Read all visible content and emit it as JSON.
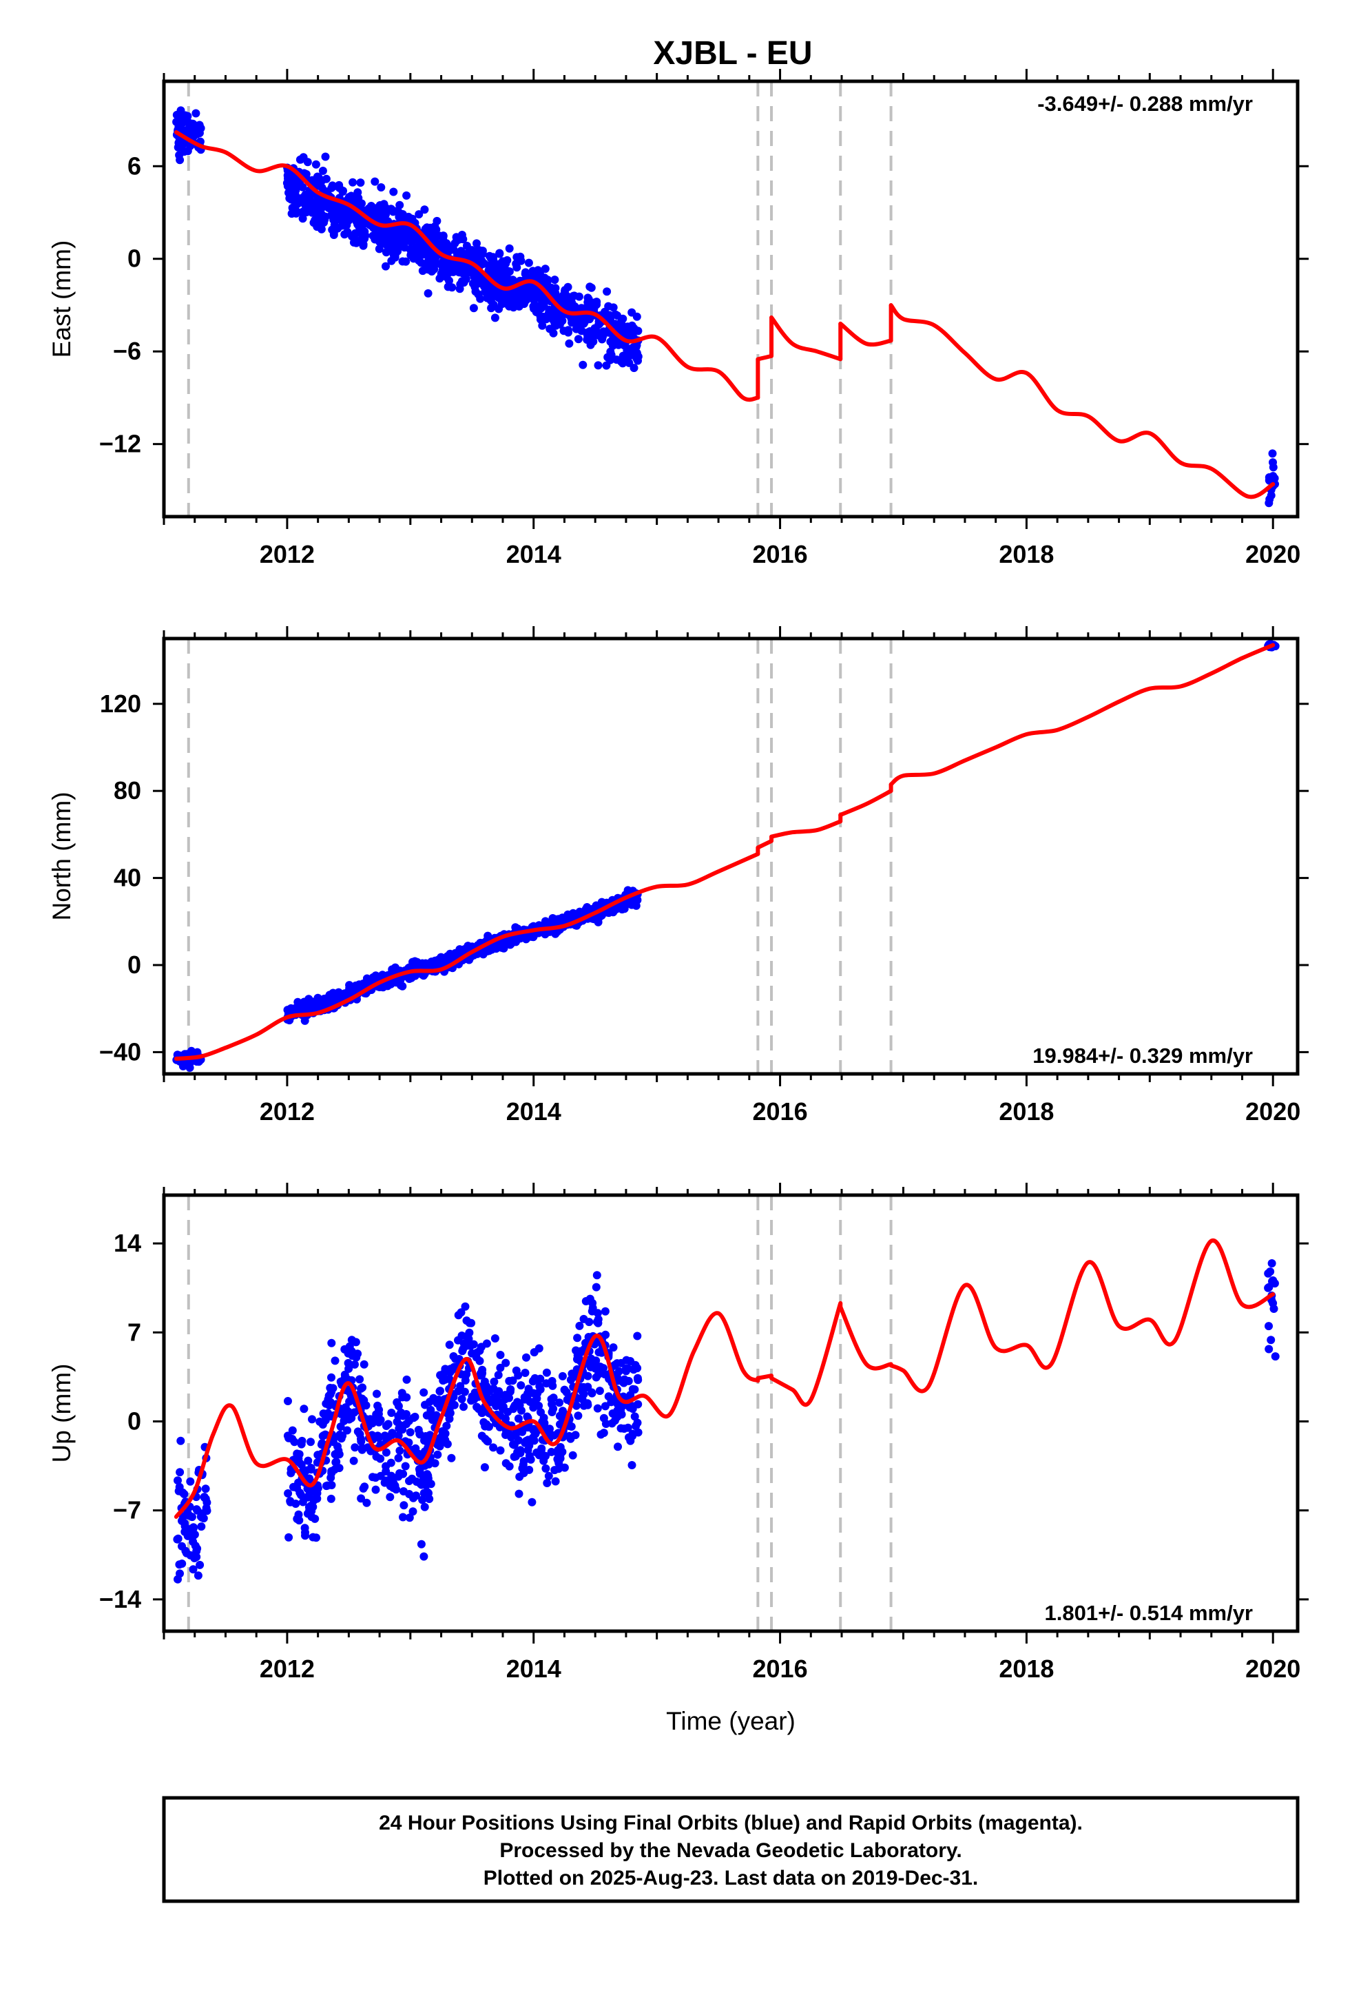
{
  "title": "XJBL - EU",
  "footer": {
    "line1": "24 Hour Positions Using Final Orbits (blue) and Rapid Orbits (magenta).",
    "line2": "Processed by the Nevada Geodetic Laboratory.",
    "line3": "Plotted on 2025-Aug-23. Last data on 2019-Dec-31."
  },
  "colors": {
    "points": "#0000ff",
    "model": "#ff0000",
    "event_lines": "#c0c0c0",
    "axes": "#000000"
  },
  "chart_data": [
    {
      "type": "scatter",
      "panel": "east",
      "ylabel": "East (mm)",
      "xlabel": "",
      "rate_label": "-3.649+/- 0.288 mm/yr",
      "rate_position": "top-right",
      "xlim": [
        2011.0,
        2020.2
      ],
      "ylim": [
        -16.7,
        11.5
      ],
      "xticks": [
        2012,
        2014,
        2016,
        2018,
        2020
      ],
      "yticks": [
        6,
        0,
        -6,
        -12
      ],
      "ytick_labels": [
        "6",
        "0",
        "−6",
        "−12"
      ],
      "event_lines_x": [
        2011.2,
        2015.82,
        2015.93,
        2016.49,
        2016.9
      ],
      "series": [
        {
          "kind": "model-curve",
          "color": "#ff0000",
          "segments": [
            {
              "x": [
                2011.1,
                2011.3,
                2011.5,
                2011.75,
                2012.0,
                2012.25,
                2012.5,
                2012.75,
                2013.0,
                2013.25,
                2013.5,
                2013.75,
                2014.0,
                2014.25,
                2014.5,
                2014.75,
                2015.0,
                2015.25,
                2015.5,
                2015.7,
                2015.82
              ],
              "y": [
                8.2,
                7.3,
                6.9,
                5.7,
                6.0,
                4.3,
                3.5,
                2.2,
                2.2,
                0.3,
                -0.3,
                -1.9,
                -1.5,
                -3.4,
                -3.6,
                -5.3,
                -5.1,
                -7.0,
                -7.3,
                -9.0,
                -9.0
              ]
            },
            {
              "x": [
                2015.82,
                2015.93
              ],
              "y": [
                -6.5,
                -6.3
              ]
            },
            {
              "x": [
                2015.93,
                2016.1,
                2016.3,
                2016.49
              ],
              "y": [
                -3.8,
                -5.5,
                -6.0,
                -6.5
              ]
            },
            {
              "x": [
                2016.49,
                2016.7,
                2016.9
              ],
              "y": [
                -4.2,
                -5.5,
                -5.3
              ]
            },
            {
              "x": [
                2016.9,
                2017.0,
                2017.25,
                2017.5,
                2017.75,
                2018.0,
                2018.25,
                2018.5,
                2018.75,
                2019.0,
                2019.25,
                2019.5,
                2019.8,
                2020.0
              ],
              "y": [
                -3.0,
                -3.9,
                -4.3,
                -6.1,
                -7.8,
                -7.4,
                -9.8,
                -10.2,
                -11.8,
                -11.3,
                -13.2,
                -13.6,
                -15.4,
                -14.6
              ]
            }
          ]
        },
        {
          "kind": "points",
          "name": "Final Orbits",
          "color": "#0000ff",
          "clusters": [
            {
              "x_range": [
                2011.1,
                2011.3
              ],
              "y_center": 8.2,
              "y_spread": 1.3,
              "count": 70
            },
            {
              "x_range": [
                2012.0,
                2014.85
              ],
              "y_start": 4.7,
              "y_end": -5.5,
              "y_spread": 1.6,
              "count": 1100
            },
            {
              "x_range": [
                2019.96,
                2020.02
              ],
              "y_center": -14.7,
              "y_spread": 1.3,
              "count": 16
            }
          ]
        }
      ]
    },
    {
      "type": "scatter",
      "panel": "north",
      "ylabel": "North (mm)",
      "xlabel": "",
      "rate_label": "19.984+/- 0.329 mm/yr",
      "rate_position": "bottom-right",
      "xlim": [
        2011.0,
        2020.2
      ],
      "ylim": [
        -50,
        150
      ],
      "xticks": [
        2012,
        2014,
        2016,
        2018,
        2020
      ],
      "yticks": [
        120,
        80,
        40,
        0,
        -40
      ],
      "ytick_labels": [
        "120",
        "80",
        "40",
        "0",
        "−40"
      ],
      "event_lines_x": [
        2011.2,
        2015.82,
        2015.93,
        2016.49,
        2016.9
      ],
      "series": [
        {
          "kind": "model-curve",
          "color": "#ff0000",
          "segments": [
            {
              "x": [
                2011.1,
                2011.3,
                2011.5,
                2011.75,
                2012.0,
                2012.25,
                2012.5,
                2012.75,
                2013.0,
                2013.25,
                2013.5,
                2013.75,
                2014.0,
                2014.25,
                2014.5,
                2014.75,
                2015.0,
                2015.25,
                2015.5,
                2015.82
              ],
              "y": [
                -43,
                -42,
                -38,
                -32,
                -24,
                -22,
                -16,
                -8,
                -3,
                -2,
                6,
                13,
                16,
                18,
                24,
                31,
                36,
                37,
                43,
                51
              ]
            },
            {
              "x": [
                2015.82,
                2015.93
              ],
              "y": [
                54,
                57
              ]
            },
            {
              "x": [
                2015.93,
                2016.1,
                2016.3,
                2016.49
              ],
              "y": [
                59,
                61,
                62,
                66
              ]
            },
            {
              "x": [
                2016.49,
                2016.7,
                2016.9
              ],
              "y": [
                69,
                74,
                80
              ]
            },
            {
              "x": [
                2016.9,
                2017.0,
                2017.25,
                2017.5,
                2017.75,
                2018.0,
                2018.25,
                2018.5,
                2018.75,
                2019.0,
                2019.25,
                2019.5,
                2019.75,
                2020.0
              ],
              "y": [
                83,
                87,
                88,
                94,
                100,
                106,
                108,
                114,
                121,
                127,
                128,
                134,
                141,
                147
              ]
            }
          ]
        },
        {
          "kind": "points",
          "name": "Final Orbits",
          "color": "#0000ff",
          "clusters": [
            {
              "x_range": [
                2011.1,
                2011.3
              ],
              "y_center": -43,
              "y_spread": 2.5,
              "count": 60
            },
            {
              "x_range": [
                2012.0,
                2014.85
              ],
              "y_start": -22,
              "y_end": 31,
              "y_spread": 3.0,
              "count": 1100
            },
            {
              "x_range": [
                2019.96,
                2020.02
              ],
              "y_center": 146.5,
              "y_spread": 1.0,
              "count": 12
            }
          ]
        }
      ]
    },
    {
      "type": "scatter",
      "panel": "up",
      "ylabel": "Up (mm)",
      "xlabel": "Time (year)",
      "rate_label": "1.801+/- 0.514 mm/yr",
      "rate_position": "bottom-right",
      "xlim": [
        2011.0,
        2020.2
      ],
      "ylim": [
        -16.5,
        17.8
      ],
      "xticks": [
        2012,
        2014,
        2016,
        2018,
        2020
      ],
      "yticks": [
        14,
        7,
        0,
        -7,
        -14
      ],
      "ytick_labels": [
        "14",
        "7",
        "0",
        "−7",
        "−14"
      ],
      "event_lines_x": [
        2011.2,
        2015.82,
        2015.93,
        2016.49,
        2016.9
      ],
      "series": [
        {
          "kind": "model-curve",
          "color": "#ff0000",
          "segments": [
            {
              "x": [
                2011.1,
                2011.25,
                2011.4,
                2011.55,
                2011.75,
                2012.0,
                2012.2,
                2012.35,
                2012.5,
                2012.7,
                2012.9,
                2013.1,
                2013.25,
                2013.45,
                2013.6,
                2013.8,
                2014.0,
                2014.2,
                2014.5,
                2014.7,
                2014.9,
                2015.1,
                2015.3,
                2015.5,
                2015.7,
                2015.82
              ],
              "y": [
                -7.5,
                -5.5,
                -1.0,
                1.2,
                -3.3,
                -3.0,
                -5.0,
                -1.0,
                3.0,
                -2.0,
                -1.5,
                -3.2,
                0.3,
                4.9,
                1.5,
                -0.5,
                0.0,
                -1.5,
                6.7,
                1.8,
                2.0,
                0.5,
                5.5,
                8.5,
                4.0,
                3.2
              ]
            },
            {
              "x": [
                2015.82,
                2015.93
              ],
              "y": [
                3.4,
                3.6
              ]
            },
            {
              "x": [
                2015.93,
                2016.1,
                2016.25,
                2016.49
              ],
              "y": [
                3.4,
                2.5,
                1.7,
                9.3
              ]
            },
            {
              "x": [
                2016.49,
                2016.7,
                2016.9
              ],
              "y": [
                9.0,
                4.5,
                4.5
              ]
            },
            {
              "x": [
                2016.9,
                2017.0,
                2017.2,
                2017.5,
                2017.75,
                2018.0,
                2018.2,
                2018.5,
                2018.75,
                2019.0,
                2019.2,
                2019.5,
                2019.75,
                2020.0
              ],
              "y": [
                4.4,
                4.0,
                2.7,
                10.7,
                5.8,
                6.0,
                4.5,
                12.5,
                7.5,
                8.0,
                6.3,
                14.2,
                9.2,
                10.0
              ]
            }
          ]
        },
        {
          "kind": "points",
          "name": "Final Orbits",
          "color": "#0000ff",
          "clusters": [
            {
              "x_range": [
                2011.1,
                2011.35
              ],
              "y_center": -7.5,
              "y_spread": 4.5,
              "count": 70
            },
            {
              "x_range": [
                2012.0,
                2014.85
              ],
              "y_follow_model": true,
              "y_spread": 4.2,
              "count": 900
            },
            {
              "x_range": [
                2019.96,
                2020.02
              ],
              "y_center": 9.5,
              "y_spread": 4.5,
              "count": 16
            }
          ]
        }
      ]
    }
  ]
}
